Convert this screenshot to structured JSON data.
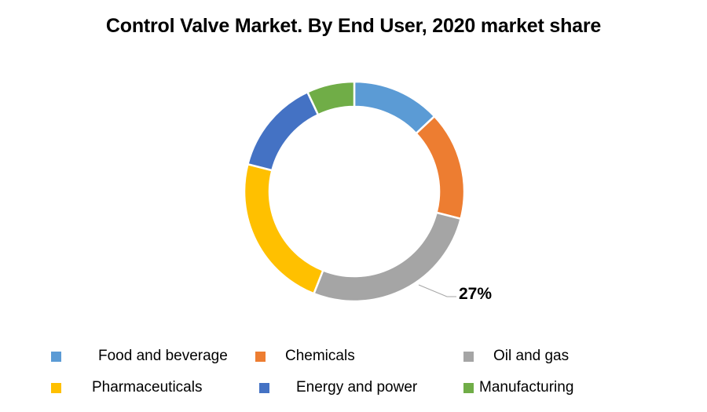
{
  "page": {
    "background": "#FFFFFF"
  },
  "chart_data": {
    "type": "pie",
    "subtype": "donut",
    "title": "Control Valve Market. By End User, 2020 market share",
    "categories": [
      "Food and beverage",
      "Chemicals",
      "Oil and gas",
      "Pharmaceuticals",
      "Energy and power",
      "Manufacturing"
    ],
    "values": [
      13,
      16,
      27,
      23,
      14,
      7
    ],
    "unit": "%",
    "colors": [
      "#5B9BD5",
      "#ED7D31",
      "#A5A5A5",
      "#FFC000",
      "#4472C4",
      "#70AD47"
    ],
    "start_angle_deg": 0,
    "direction": "clockwise",
    "hole_ratio": 0.77,
    "legend_position": "bottom",
    "legend_rows": 2,
    "annotations": [
      {
        "text": "27%",
        "category": "Oil and gas",
        "leader_line_color": "#A6A6A6"
      }
    ]
  }
}
